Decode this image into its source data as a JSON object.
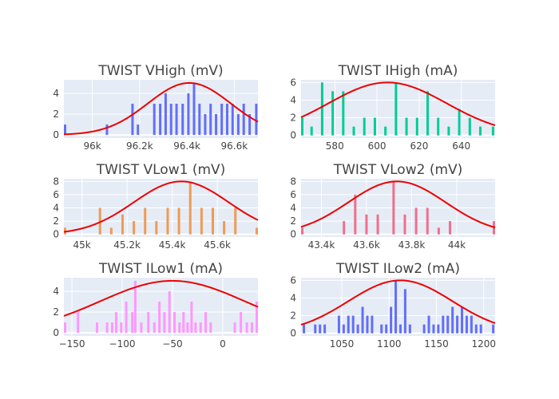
{
  "colors": {
    "background": "#ffffff",
    "plot_bg": "#e5ecf6",
    "grid": "#ffffff",
    "text": "#444444",
    "fit_line": "#ee0000"
  },
  "chart_data": [
    {
      "type": "bar",
      "title": "TWIST VHigh (mV)",
      "color": "#636efa",
      "xlim": [
        95880,
        96700
      ],
      "ylim": [
        -0.3,
        5.3
      ],
      "xticks": [
        {
          "v": 96000,
          "label": "96k"
        },
        {
          "v": 96200,
          "label": "96.2k"
        },
        {
          "v": 96400,
          "label": "96.4k"
        },
        {
          "v": 96600,
          "label": "96.6k"
        }
      ],
      "yticks": [
        {
          "v": 0,
          "label": "0"
        },
        {
          "v": 2,
          "label": "2"
        },
        {
          "v": 4,
          "label": "4"
        }
      ],
      "x": [
        95880,
        96062,
        96170,
        96193,
        96262,
        96287,
        96310,
        96333,
        96356,
        96382,
        96406,
        96430,
        96453,
        96477,
        96500,
        96523,
        96547,
        96570,
        96593,
        96617,
        96640,
        96665,
        96693
      ],
      "values": [
        1,
        1,
        3,
        1,
        3,
        3,
        4,
        3,
        3,
        3,
        4,
        5,
        3,
        2,
        3,
        2,
        3,
        3,
        3,
        2,
        3,
        2,
        3
      ],
      "fit": {
        "amp": 5,
        "mu": 96410,
        "sigma": 175
      }
    },
    {
      "type": "bar",
      "title": "TWIST IHigh (mA)",
      "color": "#00cc96",
      "xlim": [
        564,
        656
      ],
      "ylim": [
        -0.3,
        6.3
      ],
      "xticks": [
        {
          "v": 580,
          "label": "580"
        },
        {
          "v": 600,
          "label": "600"
        },
        {
          "v": 620,
          "label": "620"
        },
        {
          "v": 640,
          "label": "640"
        }
      ],
      "yticks": [
        {
          "v": 0,
          "label": "0"
        },
        {
          "v": 2,
          "label": "2"
        },
        {
          "v": 4,
          "label": "4"
        },
        {
          "v": 6,
          "label": "6"
        }
      ],
      "x": [
        564,
        569,
        574,
        579,
        584,
        589,
        594,
        599,
        604,
        609,
        614,
        619,
        624,
        629,
        634,
        639,
        644,
        649,
        655
      ],
      "values": [
        2,
        1,
        6,
        5,
        5,
        1,
        2,
        2,
        1,
        6,
        2,
        2,
        5,
        2,
        1,
        3,
        2,
        1,
        1
      ],
      "fit": {
        "amp": 6,
        "mu": 605,
        "sigma": 28
      }
    },
    {
      "type": "bar",
      "title": "TWIST VLow1 (mV)",
      "color": "#ef9a54",
      "xlim": [
        44920,
        45780
      ],
      "ylim": [
        -0.4,
        8.4
      ],
      "xticks": [
        {
          "v": 45000,
          "label": "45k"
        },
        {
          "v": 45200,
          "label": "45.2k"
        },
        {
          "v": 45400,
          "label": "45.4k"
        },
        {
          "v": 45600,
          "label": "45.6k"
        }
      ],
      "yticks": [
        {
          "v": 0,
          "label": "0"
        },
        {
          "v": 2,
          "label": "2"
        },
        {
          "v": 4,
          "label": "4"
        },
        {
          "v": 6,
          "label": "6"
        },
        {
          "v": 8,
          "label": "8"
        }
      ],
      "x": [
        44920,
        45080,
        45130,
        45180,
        45230,
        45280,
        45330,
        45380,
        45430,
        45480,
        45530,
        45580,
        45630,
        45680,
        45780
      ],
      "values": [
        1,
        4,
        1,
        3,
        2,
        4,
        2,
        4,
        4,
        8,
        4,
        4,
        2,
        4,
        1
      ],
      "fit": {
        "amp": 8,
        "mu": 45440,
        "sigma": 210
      }
    },
    {
      "type": "bar",
      "title": "TWIST VLow2 (mV)",
      "color": "#ef6f8c",
      "xlim": [
        43310,
        44170
      ],
      "ylim": [
        -0.4,
        8.4
      ],
      "xticks": [
        {
          "v": 43400,
          "label": "43.4k"
        },
        {
          "v": 43600,
          "label": "43.6k"
        },
        {
          "v": 43800,
          "label": "43.8k"
        },
        {
          "v": 44000,
          "label": "44k"
        }
      ],
      "yticks": [
        {
          "v": 0,
          "label": "0"
        },
        {
          "v": 2,
          "label": "2"
        },
        {
          "v": 4,
          "label": "4"
        },
        {
          "v": 6,
          "label": "6"
        },
        {
          "v": 8,
          "label": "8"
        }
      ],
      "x": [
        43310,
        43500,
        43550,
        43600,
        43650,
        43720,
        43770,
        43820,
        43870,
        43920,
        43970,
        44170
      ],
      "values": [
        1,
        2,
        6,
        3,
        3,
        8,
        3,
        4,
        4,
        1,
        2,
        2
      ],
      "fit": {
        "amp": 8,
        "mu": 43735,
        "sigma": 215
      }
    },
    {
      "type": "bar",
      "title": "TWIST ILow1 (mA)",
      "color": "#ff97ff",
      "xlim": [
        -158,
        35
      ],
      "ylim": [
        -0.3,
        5.3
      ],
      "xticks": [
        {
          "v": -150,
          "label": "−150"
        },
        {
          "v": -100,
          "label": "−100"
        },
        {
          "v": -50,
          "label": "−50"
        },
        {
          "v": 0,
          "label": "0"
        }
      ],
      "yticks": [
        {
          "v": 0,
          "label": "0"
        },
        {
          "v": 2,
          "label": "2"
        },
        {
          "v": 4,
          "label": "4"
        }
      ],
      "x": [
        -158,
        -144,
        -125,
        -115,
        -110,
        -106,
        -101,
        -96,
        -90,
        -87,
        -81,
        -74,
        -68,
        -63,
        -58,
        -53,
        -48,
        -43,
        -39,
        -35,
        -31,
        -27,
        -22,
        -17,
        -12,
        12,
        18,
        24,
        29,
        34
      ],
      "values": [
        1,
        2,
        1,
        1,
        1,
        2,
        1,
        3,
        2,
        5,
        1,
        2,
        1,
        3,
        2,
        4,
        2,
        1,
        2,
        1,
        3,
        1,
        1,
        2,
        1,
        1,
        2,
        1,
        1,
        3
      ],
      "fit": {
        "amp": 5,
        "mu": -50,
        "sigma": 72
      }
    },
    {
      "type": "bar",
      "title": "TWIST ILow2 (mA)",
      "color": "#636efa",
      "xlim": [
        1007,
        1212
      ],
      "ylim": [
        -0.3,
        6.3
      ],
      "xticks": [
        {
          "v": 1050,
          "label": "1050"
        },
        {
          "v": 1100,
          "label": "1100"
        },
        {
          "v": 1150,
          "label": "1150"
        },
        {
          "v": 1200,
          "label": "1200"
        }
      ],
      "yticks": [
        {
          "v": 0,
          "label": "0"
        },
        {
          "v": 2,
          "label": "2"
        },
        {
          "v": 4,
          "label": "4"
        },
        {
          "v": 6,
          "label": "6"
        }
      ],
      "x": [
        1010,
        1022,
        1027,
        1032,
        1047,
        1052,
        1057,
        1062,
        1067,
        1072,
        1077,
        1082,
        1092,
        1097,
        1102,
        1107,
        1112,
        1117,
        1122,
        1137,
        1142,
        1147,
        1152,
        1157,
        1162,
        1167,
        1172,
        1177,
        1182,
        1187,
        1192,
        1197,
        1210
      ],
      "values": [
        1,
        1,
        1,
        1,
        2,
        1,
        2,
        2,
        1,
        3,
        2,
        2,
        1,
        1,
        3,
        6,
        1,
        5,
        1,
        1,
        2,
        1,
        1,
        2,
        2,
        3,
        2,
        3,
        2,
        2,
        1,
        1,
        1
      ],
      "fit": {
        "amp": 6,
        "mu": 1112,
        "sigma": 55
      }
    }
  ]
}
